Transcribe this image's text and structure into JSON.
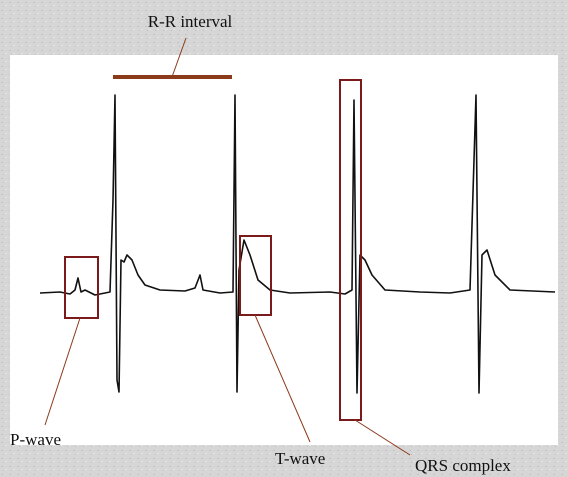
{
  "annotations": {
    "rr_interval": "R-R interval",
    "p_wave": "P-wave",
    "t_wave": "T-wave",
    "qrs_complex": "QRS complex"
  }
}
